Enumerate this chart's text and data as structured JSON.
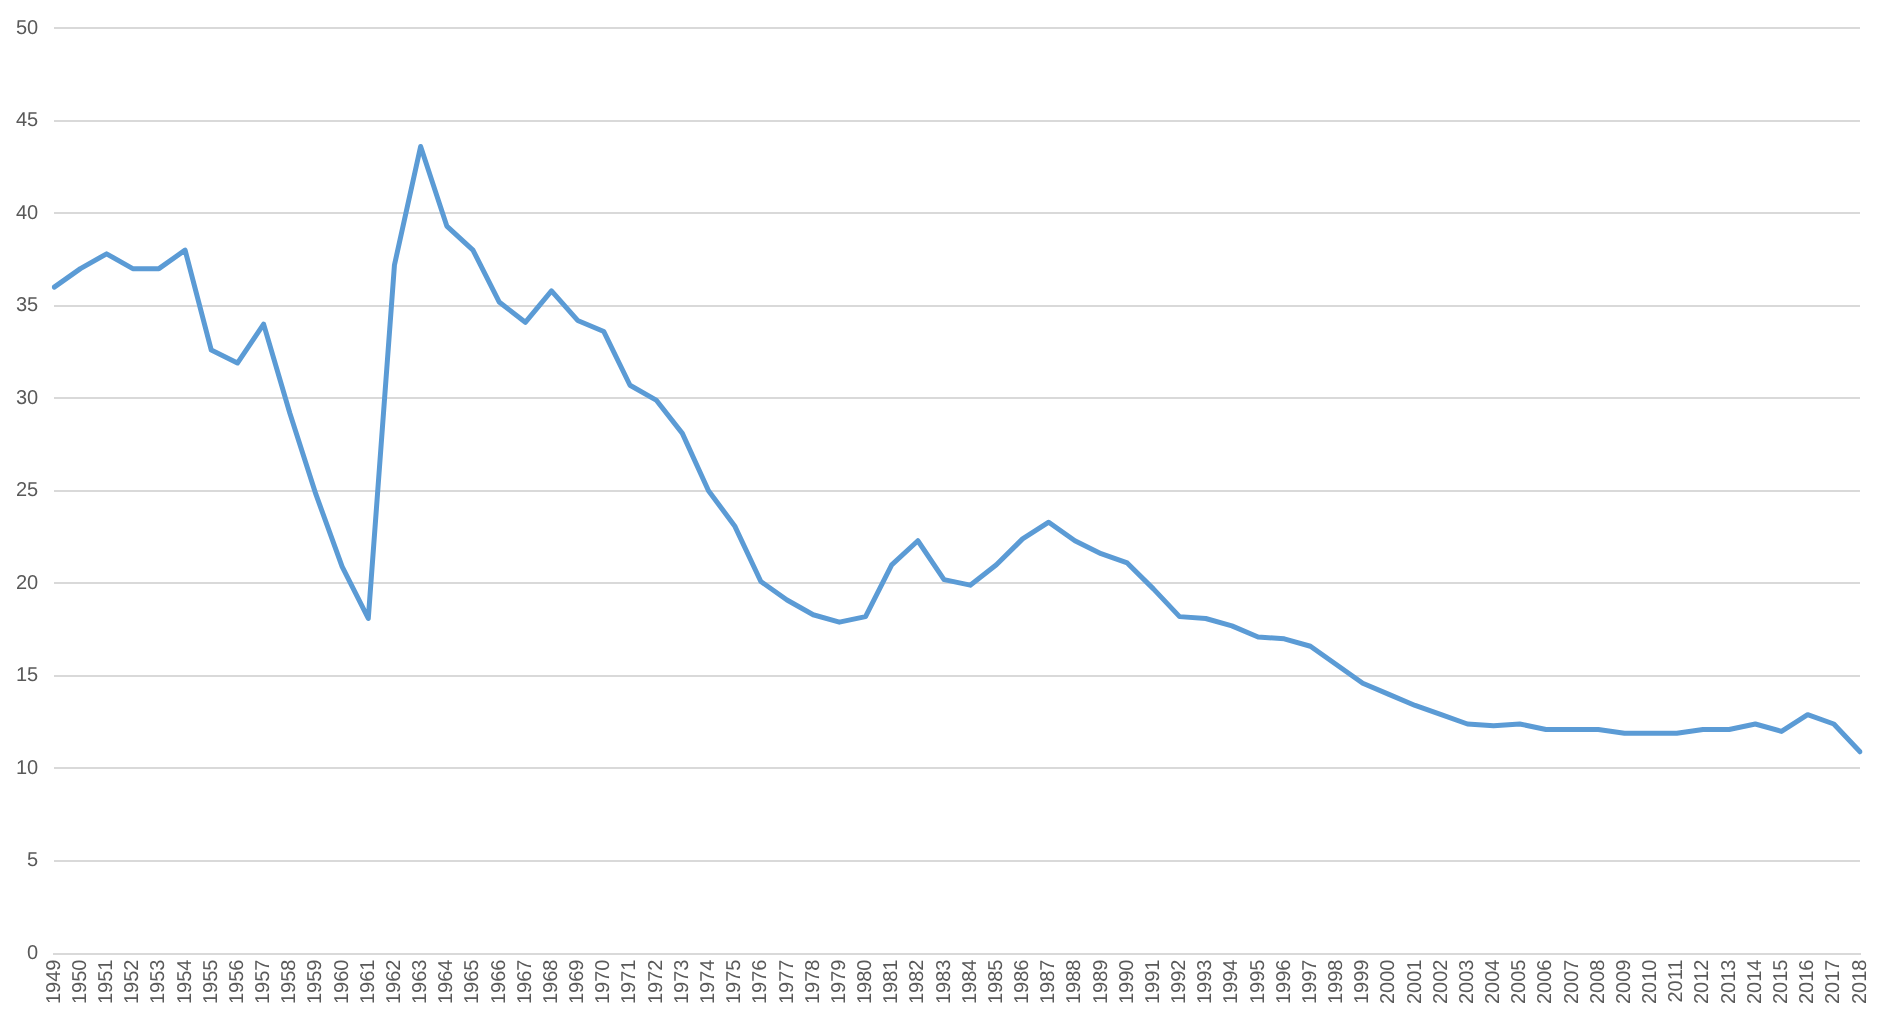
{
  "chart_data": {
    "type": "line",
    "categories": [
      "1949",
      "1950",
      "1951",
      "1952",
      "1953",
      "1954",
      "1955",
      "1956",
      "1957",
      "1958",
      "1959",
      "1960",
      "1961",
      "1962",
      "1963",
      "1964",
      "1965",
      "1966",
      "1967",
      "1968",
      "1969",
      "1970",
      "1971",
      "1972",
      "1973",
      "1974",
      "1975",
      "1976",
      "1977",
      "1978",
      "1979",
      "1980",
      "1981",
      "1982",
      "1983",
      "1984",
      "1985",
      "1986",
      "1987",
      "1988",
      "1989",
      "1990",
      "1991",
      "1992",
      "1993",
      "1994",
      "1995",
      "1996",
      "1997",
      "1998",
      "1999",
      "2000",
      "2001",
      "2002",
      "2003",
      "2004",
      "2005",
      "2006",
      "2007",
      "2008",
      "2009",
      "2010",
      "2011",
      "2012",
      "2013",
      "2014",
      "2015",
      "2016",
      "2017",
      "2018"
    ],
    "series": [
      {
        "color": "#5b9bd5",
        "values": [
          36,
          37,
          37.8,
          37,
          37,
          38,
          32.6,
          31.9,
          34,
          29.2,
          24.8,
          20.9,
          18.1,
          37.2,
          43.6,
          39.3,
          38,
          35.2,
          34.1,
          35.8,
          34.2,
          33.6,
          30.7,
          29.9,
          28.1,
          25,
          23.1,
          20.1,
          19.1,
          18.3,
          17.9,
          18.2,
          21,
          22.3,
          20.2,
          19.9,
          21,
          22.4,
          23.3,
          22.3,
          21.6,
          21.1,
          19.7,
          18.2,
          18.1,
          17.7,
          17.1,
          17,
          16.6,
          15.6,
          14.6,
          14,
          13.4,
          12.9,
          12.4,
          12.3,
          12.4,
          12.1,
          12.1,
          12.1,
          11.9,
          11.9,
          11.9,
          12.1,
          12.1,
          12.4,
          12,
          12.9,
          12.4,
          10.9
        ]
      }
    ],
    "ylim": [
      0,
      50
    ],
    "yticks": [
      0,
      5,
      10,
      15,
      20,
      25,
      30,
      35,
      40,
      45,
      50
    ],
    "grid": "y",
    "marker": "none",
    "line_style": "solid"
  }
}
